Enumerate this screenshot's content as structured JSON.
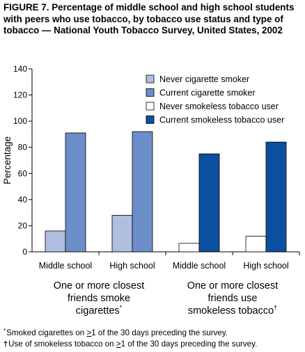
{
  "title": "FIGURE 7. Percentage of middle school and high school students with peers who use tobacco, by tobacco use status and type of tobacco — National Youth Tobacco Survey, United States, 2002",
  "colors": {
    "never_cigarette": "#aebfe0",
    "current_cigarette": "#6b8ec9",
    "never_smokeless": "#ffffff",
    "current_smokeless": "#0a4fa0"
  },
  "chart_data": {
    "type": "bar",
    "ylabel": "Percentage",
    "ylim": [
      0,
      140
    ],
    "yticks": [
      0,
      20,
      40,
      60,
      80,
      100,
      120,
      140
    ],
    "grid": false,
    "legend_position": "top-right",
    "legend": [
      {
        "key": "never_cigarette",
        "label": "Never cigarette smoker"
      },
      {
        "key": "current_cigarette",
        "label": "Current cigarette smoker"
      },
      {
        "key": "never_smokeless",
        "label": "Never smokeless tobacco user"
      },
      {
        "key": "current_smokeless",
        "label": "Current smokeless tobacco user"
      }
    ],
    "categories": [
      "Middle school",
      "High school",
      "Middle school",
      "High school"
    ],
    "group_labels": [
      {
        "lines": [
          "One or more closest",
          "friends smoke",
          "cigarettes"
        ],
        "mark": "*"
      },
      {
        "lines": [
          "One or more closest",
          "friends use",
          "smokeless tobacco"
        ],
        "mark": "†"
      }
    ],
    "bars": [
      {
        "category": 0,
        "series": "never_cigarette",
        "value": 16
      },
      {
        "category": 0,
        "series": "current_cigarette",
        "value": 91
      },
      {
        "category": 1,
        "series": "never_cigarette",
        "value": 28
      },
      {
        "category": 1,
        "series": "current_cigarette",
        "value": 92
      },
      {
        "category": 2,
        "series": "never_smokeless",
        "value": 6.5
      },
      {
        "category": 2,
        "series": "current_smokeless",
        "value": 75
      },
      {
        "category": 3,
        "series": "never_smokeless",
        "value": 12
      },
      {
        "category": 3,
        "series": "current_smokeless",
        "value": 84
      }
    ]
  },
  "footnotes": [
    {
      "mark": "*",
      "before": "Smoked cigarettes on ",
      "ul": ">",
      "after": "1 of the 30 days preceding the survey."
    },
    {
      "mark": "†",
      "before": "Use of smokeless tobacco on ",
      "ul": ">",
      "after": "1 of the 30 days preceding the survey."
    }
  ]
}
